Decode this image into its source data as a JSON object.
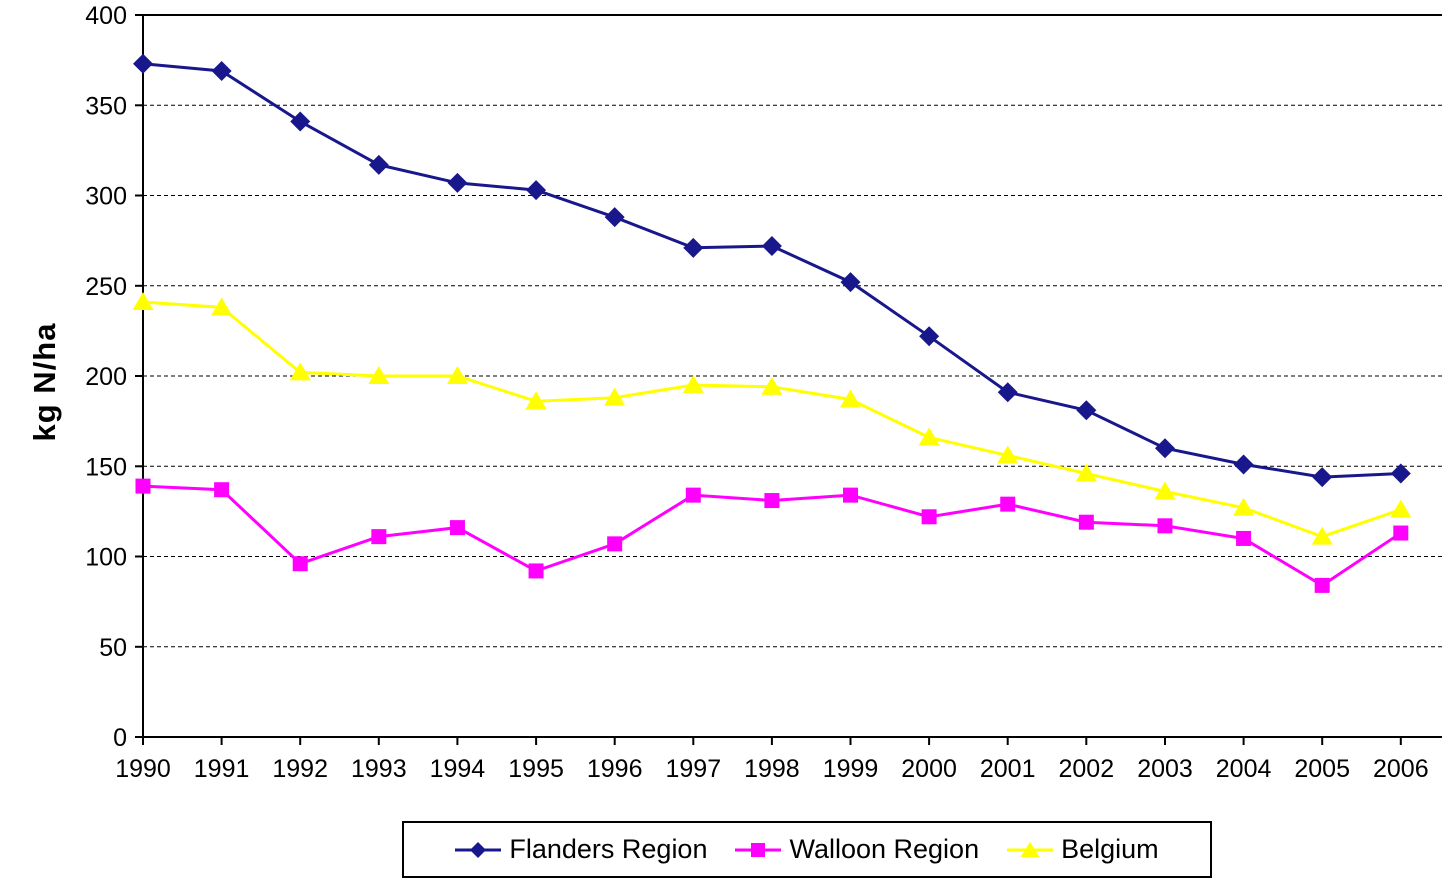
{
  "page": {
    "background_color": "#FFFFFF"
  },
  "chart_data": {
    "type": "line",
    "title": "",
    "xlabel": "",
    "ylabel": "kg N/ha",
    "x": [
      "1990",
      "1991",
      "1992",
      "1993",
      "1994",
      "1995",
      "1996",
      "1997",
      "1998",
      "1999",
      "2000",
      "2001",
      "2002",
      "2003",
      "2004",
      "2005",
      "2006"
    ],
    "series": [
      {
        "name": "Flanders Region",
        "color": "#18188C",
        "marker": "diamond",
        "values": [
          373,
          369,
          341,
          317,
          307,
          303,
          288,
          271,
          272,
          252,
          222,
          191,
          181,
          160,
          151,
          144,
          146
        ]
      },
      {
        "name": "Walloon Region",
        "color": "#FF00FF",
        "marker": "square",
        "values": [
          139,
          137,
          96,
          111,
          116,
          92,
          107,
          134,
          131,
          134,
          122,
          129,
          119,
          117,
          110,
          84,
          113
        ]
      },
      {
        "name": "Belgium",
        "color": "#FFFF00",
        "marker": "triangle",
        "values": [
          241,
          238,
          202,
          200,
          200,
          186,
          188,
          195,
          194,
          187,
          166,
          156,
          146,
          136,
          127,
          111,
          126
        ]
      }
    ],
    "ylim": [
      0,
      400
    ],
    "yticks": [
      0,
      50,
      100,
      150,
      200,
      250,
      300,
      350,
      400
    ],
    "grid": "horizontal-dashed",
    "top_border": "solid-at-400",
    "legend_position": "bottom-boxed",
    "axis_color": "#000000"
  }
}
